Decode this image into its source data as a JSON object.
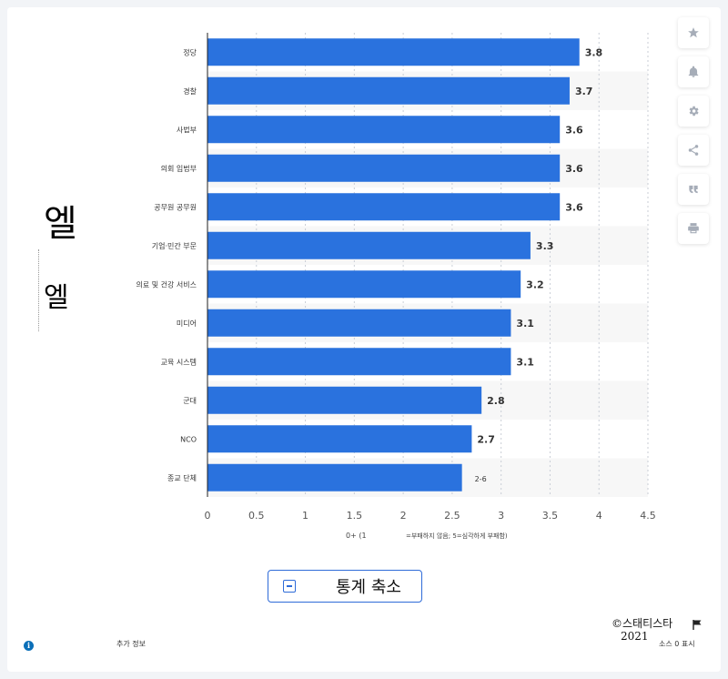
{
  "side": {
    "big": "엘",
    "small": "엘"
  },
  "toolbar": {
    "icons": [
      "star-icon",
      "bell-icon",
      "gear-icon",
      "share-icon",
      "quote-icon",
      "print-icon"
    ]
  },
  "chart_data": {
    "type": "bar",
    "orientation": "horizontal",
    "categories": [
      "정당",
      "경찰",
      "사법부",
      "의회 입법부",
      "공무원 공무원",
      "기업·민간 부문",
      "의료 및 건강 서비스",
      "미디어",
      "교육 시스템",
      "군대",
      "NCO",
      "종교 단체"
    ],
    "values": [
      3.8,
      3.7,
      3.6,
      3.6,
      3.6,
      3.3,
      3.2,
      3.1,
      3.1,
      2.8,
      2.7,
      2.6
    ],
    "value_labels": [
      "3.8",
      "3.7",
      "3.6",
      "3.6",
      "3.6",
      "3.3",
      "3.2",
      "3.1",
      "3.1",
      "2.8",
      "2.7",
      "2-6"
    ],
    "xlim": [
      0,
      4.5
    ],
    "xticks": [
      "0",
      "0.5",
      "1",
      "1.5",
      "2",
      "2.5",
      "3",
      "3.5",
      "4",
      "4.5"
    ],
    "xlabel_left": "0+ (1",
    "xlabel_right": "=부패하지 않음; 5=심각하게 부패함)",
    "bar_color": "#2a72de",
    "grid": true
  },
  "collapse_button": {
    "label": "통계 축소"
  },
  "footer": {
    "copyright_line1": "©스태티스타",
    "copyright_line2": "2021",
    "source_label": "소스 0 표시",
    "more_info_label": "추가 정보",
    "info_glyph": "i"
  }
}
